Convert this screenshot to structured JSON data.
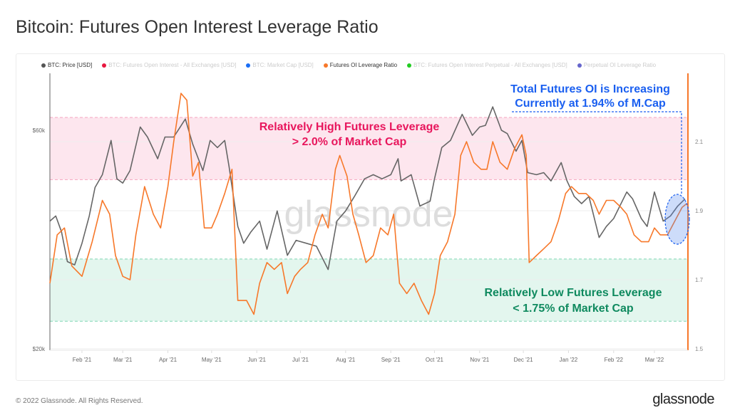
{
  "title": "Bitcoin: Futures Open Interest Leverage Ratio",
  "footer": "© 2022 Glassnode. All Rights Reserved.",
  "logo": "glassnode",
  "watermark": "glassnode",
  "legend": [
    {
      "label": "BTC: Price [USD]",
      "color": "#555555",
      "active": true
    },
    {
      "label": "BTC: Futures Open Interest - All Exchanges [USD]",
      "color": "#e8173f",
      "active": false
    },
    {
      "label": "BTC: Market Cap [USD]",
      "color": "#1a6ef5",
      "active": false
    },
    {
      "label": "Futures OI Leverage Ratio",
      "color": "#f7782a",
      "active": true
    },
    {
      "label": "BTC: Futures Open Interest Perpetual - All Exchanges [USD]",
      "color": "#22cc22",
      "active": false
    },
    {
      "label": "Perpetual OI Leverage Ratio",
      "color": "#6666cc",
      "active": false
    }
  ],
  "annotations": {
    "high": [
      "Relatively High Futures Leverage",
      "> 2.0% of Market Cap"
    ],
    "low": [
      "Relatively Low Futures Leverage",
      "< 1.75% of Market Cap"
    ],
    "current": [
      "Total Futures OI is Increasing",
      "Currently at 1.94% of M.Cap"
    ],
    "high_color": "#e8175d",
    "low_color": "#0f8a5f",
    "current_color": "#1a5ff0"
  },
  "chart_data": {
    "type": "line",
    "x_range": [
      "2021-01-10",
      "2022-03-24"
    ],
    "x_ticks": [
      "Feb '21",
      "Mar '21",
      "Apr '21",
      "May '21",
      "Jun '21",
      "Jul '21",
      "Aug '21",
      "Sep '21",
      "Oct '21",
      "Nov '21",
      "Dec '21",
      "Jan '22",
      "Feb '22",
      "Mar '22"
    ],
    "y_left": {
      "scale": "log",
      "range": [
        20000,
        80000
      ],
      "ticks": [
        {
          "v": 20000,
          "label": "$20k"
        },
        {
          "v": 60000,
          "label": "$60k"
        }
      ]
    },
    "y_right": {
      "scale": "linear",
      "range": [
        1.5,
        2.3
      ],
      "ticks": [
        {
          "v": 1.5,
          "label": "1.5"
        },
        {
          "v": 1.7,
          "label": "1.7"
        },
        {
          "v": 1.9,
          "label": "1.9"
        },
        {
          "v": 2.1,
          "label": "2.1"
        }
      ]
    },
    "bands": [
      {
        "from": 1.99,
        "to": 2.17,
        "color": "#fde6ee"
      },
      {
        "from": 1.58,
        "to": 1.76,
        "color": "#e3f6ee"
      }
    ],
    "series": [
      {
        "name": "BTC: Price [USD]",
        "axis": "left",
        "color": "#666666",
        "points": [
          [
            "2021-01-10",
            38000
          ],
          [
            "2021-01-14",
            39000
          ],
          [
            "2021-01-18",
            36000
          ],
          [
            "2021-01-22",
            31000
          ],
          [
            "2021-01-27",
            30500
          ],
          [
            "2021-02-01",
            34000
          ],
          [
            "2021-02-06",
            39000
          ],
          [
            "2021-02-10",
            45000
          ],
          [
            "2021-02-15",
            48000
          ],
          [
            "2021-02-21",
            57000
          ],
          [
            "2021-02-25",
            47000
          ],
          [
            "2021-03-01",
            46000
          ],
          [
            "2021-03-06",
            49000
          ],
          [
            "2021-03-13",
            61000
          ],
          [
            "2021-03-18",
            58000
          ],
          [
            "2021-03-25",
            52000
          ],
          [
            "2021-03-30",
            58000
          ],
          [
            "2021-04-05",
            58000
          ],
          [
            "2021-04-13",
            63500
          ],
          [
            "2021-04-18",
            56000
          ],
          [
            "2021-04-25",
            49000
          ],
          [
            "2021-04-30",
            57000
          ],
          [
            "2021-05-05",
            55000
          ],
          [
            "2021-05-10",
            57000
          ],
          [
            "2021-05-13",
            50000
          ],
          [
            "2021-05-19",
            37000
          ],
          [
            "2021-05-23",
            34000
          ],
          [
            "2021-05-28",
            36000
          ],
          [
            "2021-06-03",
            38000
          ],
          [
            "2021-06-08",
            33000
          ],
          [
            "2021-06-15",
            40000
          ],
          [
            "2021-06-22",
            32000
          ],
          [
            "2021-06-28",
            34500
          ],
          [
            "2021-07-05",
            34000
          ],
          [
            "2021-07-12",
            33500
          ],
          [
            "2021-07-20",
            29800
          ],
          [
            "2021-07-26",
            38000
          ],
          [
            "2021-08-01",
            40000
          ],
          [
            "2021-08-07",
            43000
          ],
          [
            "2021-08-14",
            47000
          ],
          [
            "2021-08-20",
            48000
          ],
          [
            "2021-08-26",
            47000
          ],
          [
            "2021-09-01",
            48000
          ],
          [
            "2021-09-06",
            52000
          ],
          [
            "2021-09-08",
            46500
          ],
          [
            "2021-09-15",
            48000
          ],
          [
            "2021-09-21",
            41000
          ],
          [
            "2021-09-28",
            42000
          ],
          [
            "2021-10-01",
            47000
          ],
          [
            "2021-10-06",
            55000
          ],
          [
            "2021-10-12",
            57000
          ],
          [
            "2021-10-20",
            65000
          ],
          [
            "2021-10-27",
            58500
          ],
          [
            "2021-11-01",
            61000
          ],
          [
            "2021-11-05",
            61500
          ],
          [
            "2021-11-10",
            67500
          ],
          [
            "2021-11-16",
            60000
          ],
          [
            "2021-11-20",
            59000
          ],
          [
            "2021-11-26",
            54000
          ],
          [
            "2021-11-30",
            57000
          ],
          [
            "2021-12-04",
            48500
          ],
          [
            "2021-12-10",
            48000
          ],
          [
            "2021-12-15",
            48500
          ],
          [
            "2021-12-20",
            46500
          ],
          [
            "2021-12-27",
            51000
          ],
          [
            "2021-12-31",
            46500
          ],
          [
            "2022-01-05",
            43000
          ],
          [
            "2022-01-10",
            41500
          ],
          [
            "2022-01-15",
            43000
          ],
          [
            "2022-01-22",
            35000
          ],
          [
            "2022-01-27",
            37000
          ],
          [
            "2022-02-01",
            38500
          ],
          [
            "2022-02-10",
            44000
          ],
          [
            "2022-02-14",
            42500
          ],
          [
            "2022-02-20",
            38500
          ],
          [
            "2022-02-24",
            37000
          ],
          [
            "2022-03-01",
            44000
          ],
          [
            "2022-03-07",
            38000
          ],
          [
            "2022-03-12",
            39000
          ],
          [
            "2022-03-17",
            41000
          ],
          [
            "2022-03-22",
            42500
          ]
        ]
      },
      {
        "name": "Futures OI Leverage Ratio",
        "axis": "right",
        "color": "#f7782a",
        "points": [
          [
            "2021-01-10",
            1.69
          ],
          [
            "2021-01-15",
            1.83
          ],
          [
            "2021-01-20",
            1.85
          ],
          [
            "2021-01-25",
            1.74
          ],
          [
            "2021-02-01",
            1.71
          ],
          [
            "2021-02-08",
            1.81
          ],
          [
            "2021-02-15",
            1.93
          ],
          [
            "2021-02-20",
            1.89
          ],
          [
            "2021-02-24",
            1.77
          ],
          [
            "2021-03-01",
            1.71
          ],
          [
            "2021-03-06",
            1.7
          ],
          [
            "2021-03-10",
            1.83
          ],
          [
            "2021-03-16",
            1.97
          ],
          [
            "2021-03-22",
            1.89
          ],
          [
            "2021-03-27",
            1.85
          ],
          [
            "2021-04-01",
            1.97
          ],
          [
            "2021-04-05",
            2.1
          ],
          [
            "2021-04-10",
            2.24
          ],
          [
            "2021-04-14",
            2.22
          ],
          [
            "2021-04-18",
            2.0
          ],
          [
            "2021-04-22",
            2.04
          ],
          [
            "2021-04-26",
            1.85
          ],
          [
            "2021-05-01",
            1.85
          ],
          [
            "2021-05-05",
            1.89
          ],
          [
            "2021-05-10",
            1.95
          ],
          [
            "2021-05-15",
            2.02
          ],
          [
            "2021-05-19",
            1.64
          ],
          [
            "2021-05-25",
            1.64
          ],
          [
            "2021-05-30",
            1.6
          ],
          [
            "2021-06-03",
            1.69
          ],
          [
            "2021-06-08",
            1.75
          ],
          [
            "2021-06-13",
            1.73
          ],
          [
            "2021-06-18",
            1.75
          ],
          [
            "2021-06-22",
            1.66
          ],
          [
            "2021-06-27",
            1.71
          ],
          [
            "2021-07-01",
            1.73
          ],
          [
            "2021-07-06",
            1.75
          ],
          [
            "2021-07-11",
            1.83
          ],
          [
            "2021-07-16",
            1.89
          ],
          [
            "2021-07-20",
            1.85
          ],
          [
            "2021-07-25",
            2.02
          ],
          [
            "2021-07-28",
            2.06
          ],
          [
            "2021-08-02",
            2.0
          ],
          [
            "2021-08-06",
            1.89
          ],
          [
            "2021-08-10",
            1.83
          ],
          [
            "2021-08-15",
            1.75
          ],
          [
            "2021-08-20",
            1.77
          ],
          [
            "2021-08-25",
            1.85
          ],
          [
            "2021-08-30",
            1.83
          ],
          [
            "2021-09-03",
            1.89
          ],
          [
            "2021-09-07",
            1.69
          ],
          [
            "2021-09-12",
            1.66
          ],
          [
            "2021-09-17",
            1.69
          ],
          [
            "2021-09-22",
            1.64
          ],
          [
            "2021-09-27",
            1.6
          ],
          [
            "2021-10-01",
            1.66
          ],
          [
            "2021-10-05",
            1.77
          ],
          [
            "2021-10-10",
            1.81
          ],
          [
            "2021-10-15",
            1.89
          ],
          [
            "2021-10-19",
            2.06
          ],
          [
            "2021-10-23",
            2.1
          ],
          [
            "2021-10-28",
            2.04
          ],
          [
            "2021-11-02",
            2.02
          ],
          [
            "2021-11-06",
            2.02
          ],
          [
            "2021-11-10",
            2.1
          ],
          [
            "2021-11-15",
            2.04
          ],
          [
            "2021-11-20",
            2.02
          ],
          [
            "2021-11-25",
            2.08
          ],
          [
            "2021-11-30",
            2.12
          ],
          [
            "2021-12-03",
            2.06
          ],
          [
            "2021-12-05",
            1.75
          ],
          [
            "2021-12-10",
            1.77
          ],
          [
            "2021-12-15",
            1.79
          ],
          [
            "2021-12-20",
            1.81
          ],
          [
            "2021-12-25",
            1.87
          ],
          [
            "2021-12-30",
            1.95
          ],
          [
            "2022-01-03",
            1.97
          ],
          [
            "2022-01-08",
            1.95
          ],
          [
            "2022-01-13",
            1.95
          ],
          [
            "2022-01-18",
            1.93
          ],
          [
            "2022-01-22",
            1.89
          ],
          [
            "2022-01-27",
            1.93
          ],
          [
            "2022-02-01",
            1.93
          ],
          [
            "2022-02-06",
            1.91
          ],
          [
            "2022-02-10",
            1.89
          ],
          [
            "2022-02-15",
            1.83
          ],
          [
            "2022-02-20",
            1.81
          ],
          [
            "2022-02-25",
            1.81
          ],
          [
            "2022-03-01",
            1.85
          ],
          [
            "2022-03-05",
            1.83
          ],
          [
            "2022-03-10",
            1.83
          ],
          [
            "2022-03-15",
            1.87
          ],
          [
            "2022-03-20",
            1.91
          ],
          [
            "2022-03-23",
            1.92
          ]
        ]
      }
    ]
  }
}
